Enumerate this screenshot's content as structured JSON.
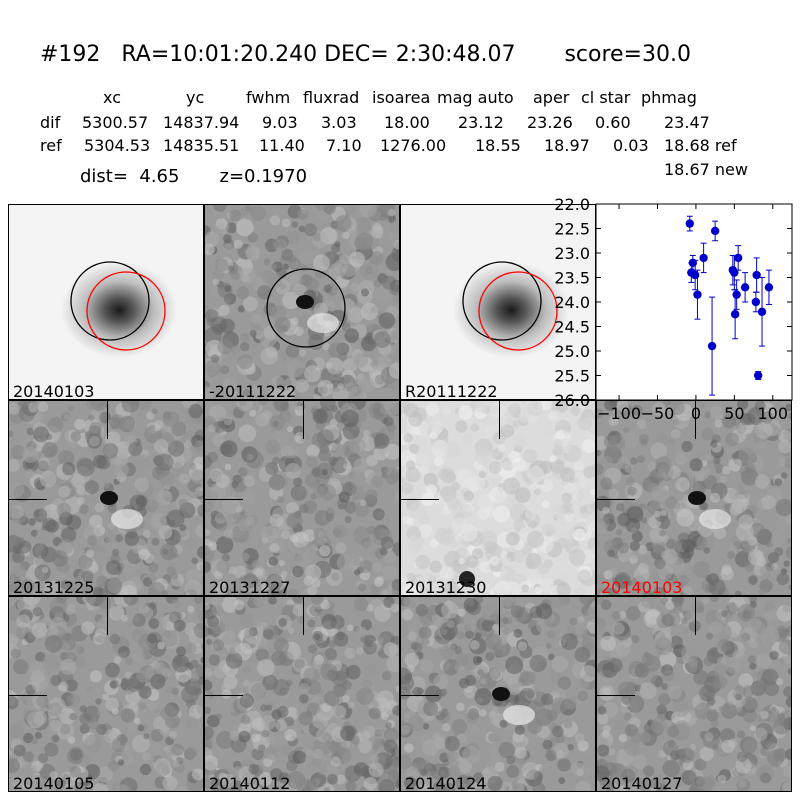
{
  "title": "#192   RA=10:01:20.240 DEC= 2:30:48.07       score=30.0",
  "table": {
    "headers": [
      "xc",
      "yc",
      "fwhm",
      "fluxrad",
      "isoarea",
      "mag auto",
      "aper",
      "cl star",
      "phmag"
    ],
    "rows": [
      {
        "label": "dif",
        "values": [
          "5300.57",
          "14837.94",
          "9.03",
          "3.03",
          "18.00",
          "23.12",
          "23.26",
          "0.60",
          "23.47"
        ]
      },
      {
        "label": "ref",
        "values": [
          "5304.53",
          "14835.51",
          "11.40",
          "7.10",
          "1276.00",
          "18.55",
          "18.97",
          "0.03",
          "18.68 ref"
        ]
      }
    ],
    "extra_phmag": "18.67 new"
  },
  "dist_line": "dist=  4.65       z=0.1970",
  "panels": [
    {
      "label": "20140103",
      "kind": "galaxy"
    },
    {
      "label": "-20111222",
      "kind": "diff"
    },
    {
      "label": "R20111222",
      "kind": "galaxy"
    },
    {
      "label": "20131225",
      "kind": "noise"
    },
    {
      "label": "20131227",
      "kind": "noise"
    },
    {
      "label": "20131230",
      "kind": "light"
    },
    {
      "label": "20140103",
      "kind": "noise",
      "highlight": true
    },
    {
      "label": "20140105",
      "kind": "noise"
    },
    {
      "label": "20140112",
      "kind": "noise"
    },
    {
      "label": "20140124",
      "kind": "noise"
    },
    {
      "label": "20140127",
      "kind": "noise"
    }
  ],
  "colors": {
    "highlight_label": "#ff0000",
    "circle_ref": "#000000",
    "circle_new": "#ff0000",
    "points": "#0000cc"
  },
  "chart_data": {
    "type": "scatter",
    "title": "",
    "xlabel": "",
    "ylabel": "",
    "xlim": [
      -130,
      125
    ],
    "ylim": [
      26.0,
      22.0
    ],
    "y_inverted": true,
    "x_ticks": [
      "−100",
      "−50",
      "0",
      "50",
      "100"
    ],
    "y_ticks": [
      "22.0",
      "22.5",
      "23.0",
      "23.5",
      "24.0",
      "24.5",
      "25.0",
      "25.5",
      "26.0"
    ],
    "points": [
      {
        "x": -8,
        "y": 22.4,
        "err": 0.15
      },
      {
        "x": -6,
        "y": 23.4,
        "err": 0.2
      },
      {
        "x": -4,
        "y": 23.2,
        "err": 0.15
      },
      {
        "x": -1,
        "y": 23.45,
        "err": 0.3
      },
      {
        "x": 2,
        "y": 23.85,
        "err": 0.5
      },
      {
        "x": 10,
        "y": 23.1,
        "err": 0.3
      },
      {
        "x": 21,
        "y": 24.9,
        "err": 1.0
      },
      {
        "x": 25,
        "y": 22.55,
        "err": 0.2
      },
      {
        "x": 48,
        "y": 23.35,
        "err": 0.3
      },
      {
        "x": 50,
        "y": 23.4,
        "err": 0.35
      },
      {
        "x": 51,
        "y": 24.25,
        "err": 0.5
      },
      {
        "x": 53,
        "y": 23.85,
        "err": 0.3
      },
      {
        "x": 55,
        "y": 23.1,
        "err": 0.25
      },
      {
        "x": 64,
        "y": 23.7,
        "err": 0.3
      },
      {
        "x": 79,
        "y": 23.45,
        "err": 0.35
      },
      {
        "x": 78,
        "y": 24.0,
        "err": 0.2
      },
      {
        "x": 81,
        "y": 25.5,
        "err": 0.08
      },
      {
        "x": 86,
        "y": 24.2,
        "err": 0.7
      },
      {
        "x": 95,
        "y": 23.7,
        "err": 0.35
      }
    ]
  }
}
